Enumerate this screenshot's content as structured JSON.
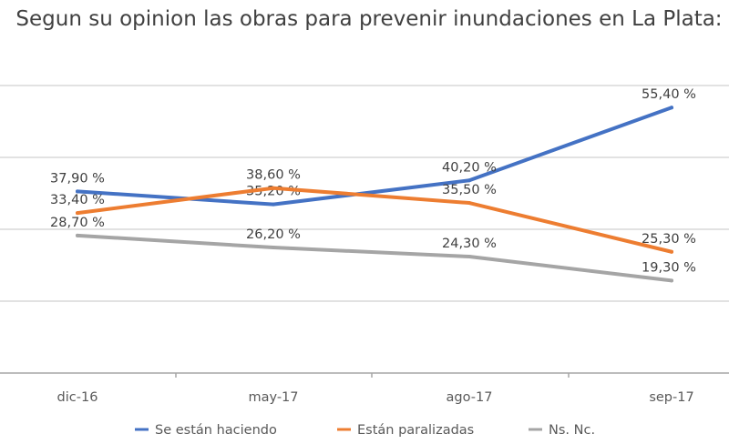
{
  "chart_data": {
    "type": "line",
    "title": "Segun su opinion las obras para prevenir inundaciones en La Plata:",
    "categories": [
      "dic-16",
      "may-17",
      "ago-17",
      "sep-17"
    ],
    "series": [
      {
        "name": "Se están haciendo",
        "color": "#4472C4",
        "values": [
          37.9,
          35.2,
          40.2,
          55.4
        ],
        "labels": [
          "37,90 %",
          "35,20 %",
          "40,20 %",
          "55,40 %"
        ]
      },
      {
        "name": "Están paralizadas",
        "color": "#ED7D31",
        "values": [
          33.4,
          38.6,
          35.5,
          25.3
        ],
        "labels": [
          "33,40 %",
          "38,60 %",
          "35,50 %",
          "25,30 %"
        ]
      },
      {
        "name": "Ns. Nc.",
        "color": "#A5A5A5",
        "values": [
          28.7,
          26.2,
          24.3,
          19.3
        ],
        "labels": [
          "28,70 %",
          "26,20 %",
          "24,30 %",
          "19,30 %"
        ]
      }
    ],
    "ylim": [
      0,
      60
    ],
    "ytick_step": 15,
    "y_tick_labels_shown": false,
    "grid": true,
    "legend": "bottom"
  }
}
